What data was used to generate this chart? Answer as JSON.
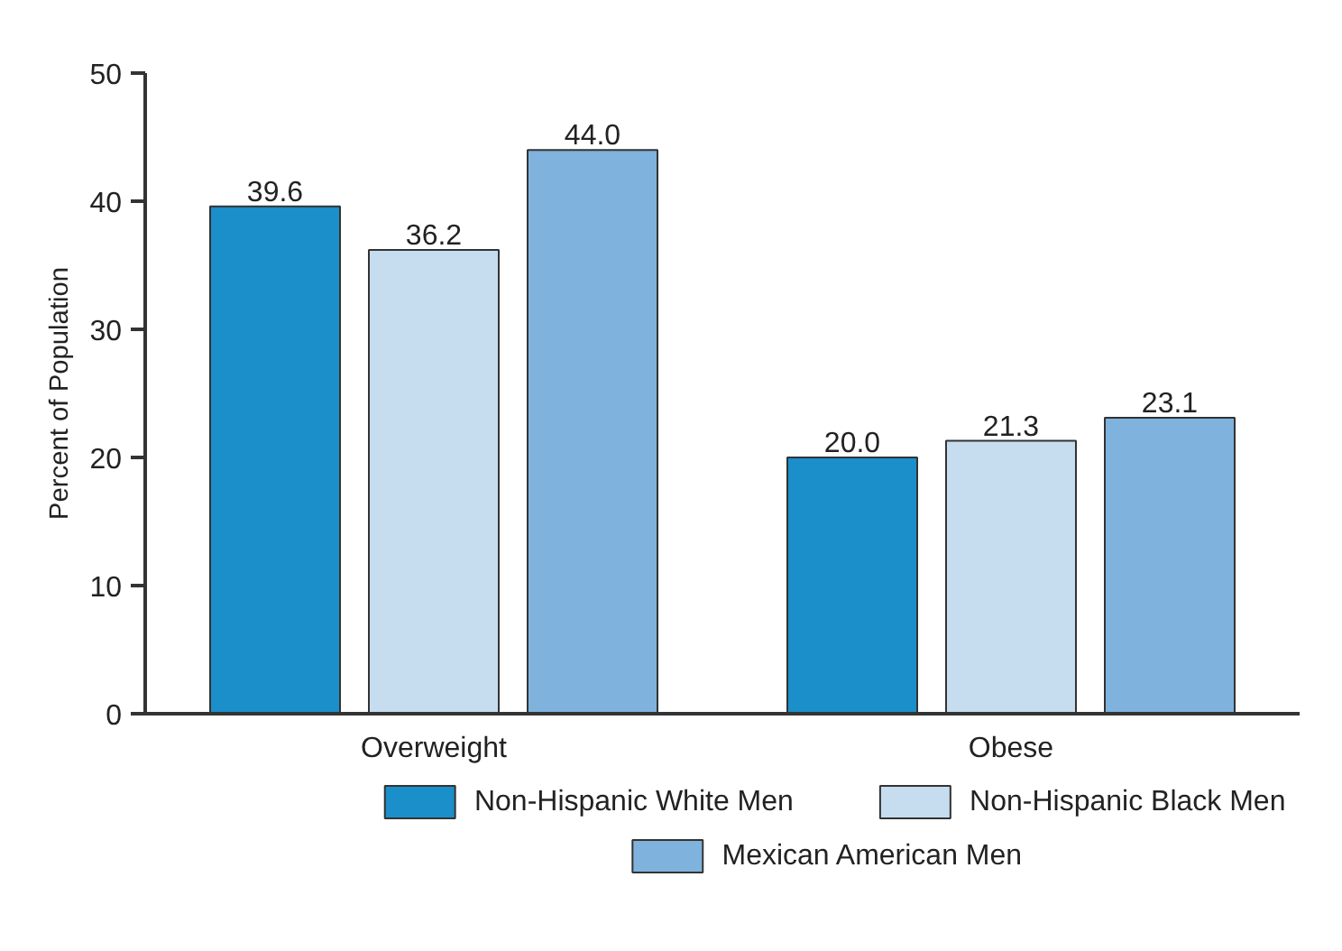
{
  "chart_data": {
    "type": "bar",
    "ylabel": "Percent of Population",
    "categories": [
      "Overweight",
      "Obese"
    ],
    "series": [
      {
        "name": "Non-Hispanic White Men",
        "color": "#1a8fc9",
        "values": [
          39.6,
          20.0
        ]
      },
      {
        "name": "Non-Hispanic Black Men",
        "color": "#c6dcef",
        "values": [
          36.2,
          21.3
        ]
      },
      {
        "name": "Mexican American Men",
        "color": "#7fb2dc",
        "values": [
          44.0,
          23.1
        ]
      }
    ],
    "ylim": [
      0,
      50
    ],
    "yticks": [
      0,
      10,
      20,
      30,
      40,
      50
    ],
    "grid": false,
    "legend": "bottom",
    "value_labels": [
      [
        "39.6",
        "20.0"
      ],
      [
        "36.2",
        "21.3"
      ],
      [
        "44.0",
        "23.1"
      ]
    ]
  }
}
